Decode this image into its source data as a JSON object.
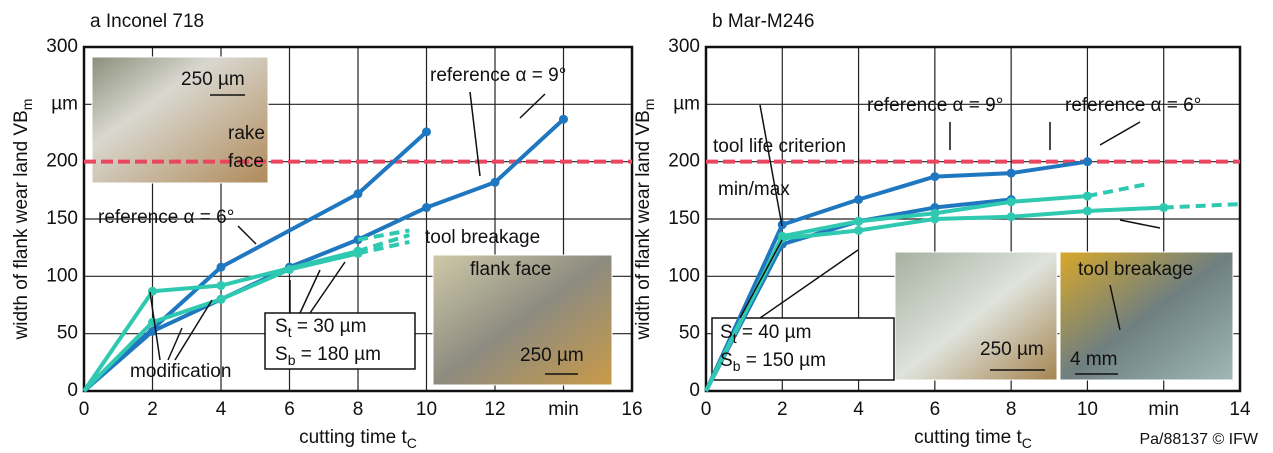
{
  "chart_data": [
    {
      "type": "line",
      "title": "a Inconel 718",
      "ylabel": [
        "width of flank wear land VB",
        "m"
      ],
      "xlabel": [
        "cutting time t",
        "C"
      ],
      "xlim": [
        0,
        16
      ],
      "ylim": [
        0,
        300
      ],
      "xticks": [
        0,
        2,
        4,
        6,
        8,
        10,
        12,
        {
          "value": 14,
          "label": "min"
        },
        16
      ],
      "yticks": [
        0,
        50,
        100,
        150,
        200,
        {
          "value": 250,
          "label": "µm"
        },
        300
      ],
      "grid": true,
      "reference_line": {
        "value": 200,
        "color": "#e8475f"
      },
      "series": [
        {
          "color": "#1f77c0",
          "x": [
            0,
            4,
            8,
            10
          ],
          "values": [
            0,
            108,
            172,
            226
          ]
        },
        {
          "color": "#1f77c0",
          "x": [
            0,
            2,
            4,
            6,
            8,
            10,
            12,
            14
          ],
          "values": [
            0,
            52,
            80,
            108,
            132,
            160,
            182,
            237
          ]
        },
        {
          "color": "#2fc8b0",
          "x": [
            0,
            2,
            4,
            8
          ],
          "values": [
            0,
            87,
            92,
            122
          ]
        },
        {
          "color": "#2fc8b0",
          "x": [
            0,
            2,
            4,
            6,
            8
          ],
          "values": [
            0,
            60,
            80,
            106,
            120
          ]
        },
        {
          "color": "#2fc8b0",
          "dashed": true,
          "x": [
            8,
            9.5
          ],
          "values": [
            132,
            140
          ]
        },
        {
          "color": "#2fc8b0",
          "dashed": true,
          "x": [
            8,
            9.5
          ],
          "values": [
            122,
            136
          ]
        },
        {
          "color": "#2fc8b0",
          "dashed": true,
          "x": [
            8,
            9.5
          ],
          "values": [
            120,
            130
          ]
        }
      ],
      "annotations": [
        {
          "text": [
            "reference α = 9°"
          ]
        },
        {
          "text": [
            "reference α = 6°"
          ]
        },
        {
          "text": [
            "tool breakage"
          ]
        },
        {
          "text": [
            "flank face"
          ]
        },
        {
          "text": [
            "modification"
          ]
        },
        {
          "text": [
            "250 µm"
          ]
        },
        {
          "text": [
            "rake"
          ]
        },
        {
          "text": [
            "face"
          ]
        },
        {
          "text": [
            "250 µm"
          ]
        },
        {
          "text": [
            "S",
            "t",
            " = 30 µm"
          ]
        },
        {
          "text": [
            "S",
            "b",
            " = 180 µm"
          ]
        }
      ]
    },
    {
      "type": "line",
      "title": "b Mar-M246",
      "ylabel": [
        "width of flank wear land VB",
        "m"
      ],
      "xlabel": [
        "cutting time t",
        "C"
      ],
      "xlim": [
        0,
        14
      ],
      "ylim": [
        0,
        300
      ],
      "xticks": [
        0,
        2,
        4,
        6,
        8,
        10,
        {
          "value": 12,
          "label": "min"
        },
        14
      ],
      "yticks": [
        0,
        50,
        100,
        150,
        200,
        {
          "value": 250,
          "label": "µm"
        },
        300
      ],
      "grid": true,
      "reference_line": {
        "value": 200,
        "color": "#e8475f"
      },
      "series": [
        {
          "color": "#1f77c0",
          "x": [
            0,
            2,
            4,
            6,
            8,
            10
          ],
          "values": [
            0,
            145,
            167,
            187,
            190,
            200
          ]
        },
        {
          "color": "#1f77c0",
          "x": [
            0,
            2,
            4,
            6,
            8
          ],
          "values": [
            0,
            128,
            148,
            160,
            167
          ]
        },
        {
          "color": "#2fc8b0",
          "x": [
            0,
            2,
            4,
            6,
            8,
            10
          ],
          "values": [
            0,
            135,
            148,
            155,
            165,
            170
          ]
        },
        {
          "color": "#2fc8b0",
          "x": [
            0,
            2,
            4,
            6,
            8,
            10,
            12
          ],
          "values": [
            0,
            133,
            140,
            150,
            152,
            157,
            160
          ]
        },
        {
          "color": "#2fc8b0",
          "dashed": true,
          "x": [
            10,
            11.5
          ],
          "values": [
            170,
            180
          ]
        },
        {
          "color": "#2fc8b0",
          "dashed": true,
          "x": [
            12,
            14
          ],
          "values": [
            160,
            163
          ]
        }
      ],
      "annotations": [
        {
          "text": [
            "reference α = 9°"
          ]
        },
        {
          "text": [
            "reference α = 6°"
          ]
        },
        {
          "text": [
            "tool life criterion"
          ]
        },
        {
          "text": [
            "min/max"
          ]
        },
        {
          "text": [
            "250 µm"
          ]
        },
        {
          "text": [
            "4 mm"
          ]
        },
        {
          "text": [
            "tool breakage"
          ]
        },
        {
          "text": [
            "S",
            "t",
            " = 40 µm"
          ]
        },
        {
          "text": [
            "S",
            "b",
            " = 150 µm"
          ]
        }
      ]
    }
  ],
  "footer": "Pa/88137 © IFW"
}
